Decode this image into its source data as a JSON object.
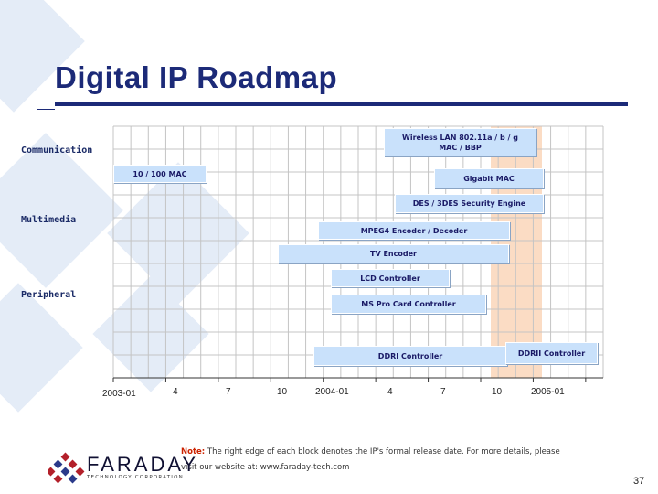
{
  "title": "Digital IP Roadmap",
  "categories": {
    "communication": "Communication",
    "multimedia": "Multimedia",
    "peripheral": "Peripheral"
  },
  "blocks": {
    "wireless_lan": "Wireless LAN 802.11a / b / g MAC / BBP",
    "mac_10_100": "10 / 100 MAC",
    "gigabit_mac": "Gigabit MAC",
    "des_3des": "DES / 3DES Security Engine",
    "mpeg4": "MPEG4 Encoder / Decoder",
    "tv_encoder": "TV Encoder",
    "lcd_controller": "LCD Controller",
    "ms_pro": "MS Pro Card Controller",
    "ddri": "DDRI Controller",
    "ddrii": "DDRII Controller"
  },
  "x_axis": [
    "2003-01",
    "4",
    "7",
    "10",
    "2004-01",
    "4",
    "7",
    "10",
    "2005-01"
  ],
  "note": {
    "label": "Note:",
    "text": " The right edge of each block denotes the IP's formal release date. For more details, please",
    "text2": "visit our website at: www.faraday-tech.com"
  },
  "logo": {
    "brand": "FARADAY",
    "tagline": "TECHNOLOGY CORPORATION"
  },
  "page_number": "37",
  "colors": {
    "title": "#1c2a78",
    "block": "#c9e1fb",
    "highlight_column": "#fbdcc4",
    "note_label": "#cc2200"
  }
}
